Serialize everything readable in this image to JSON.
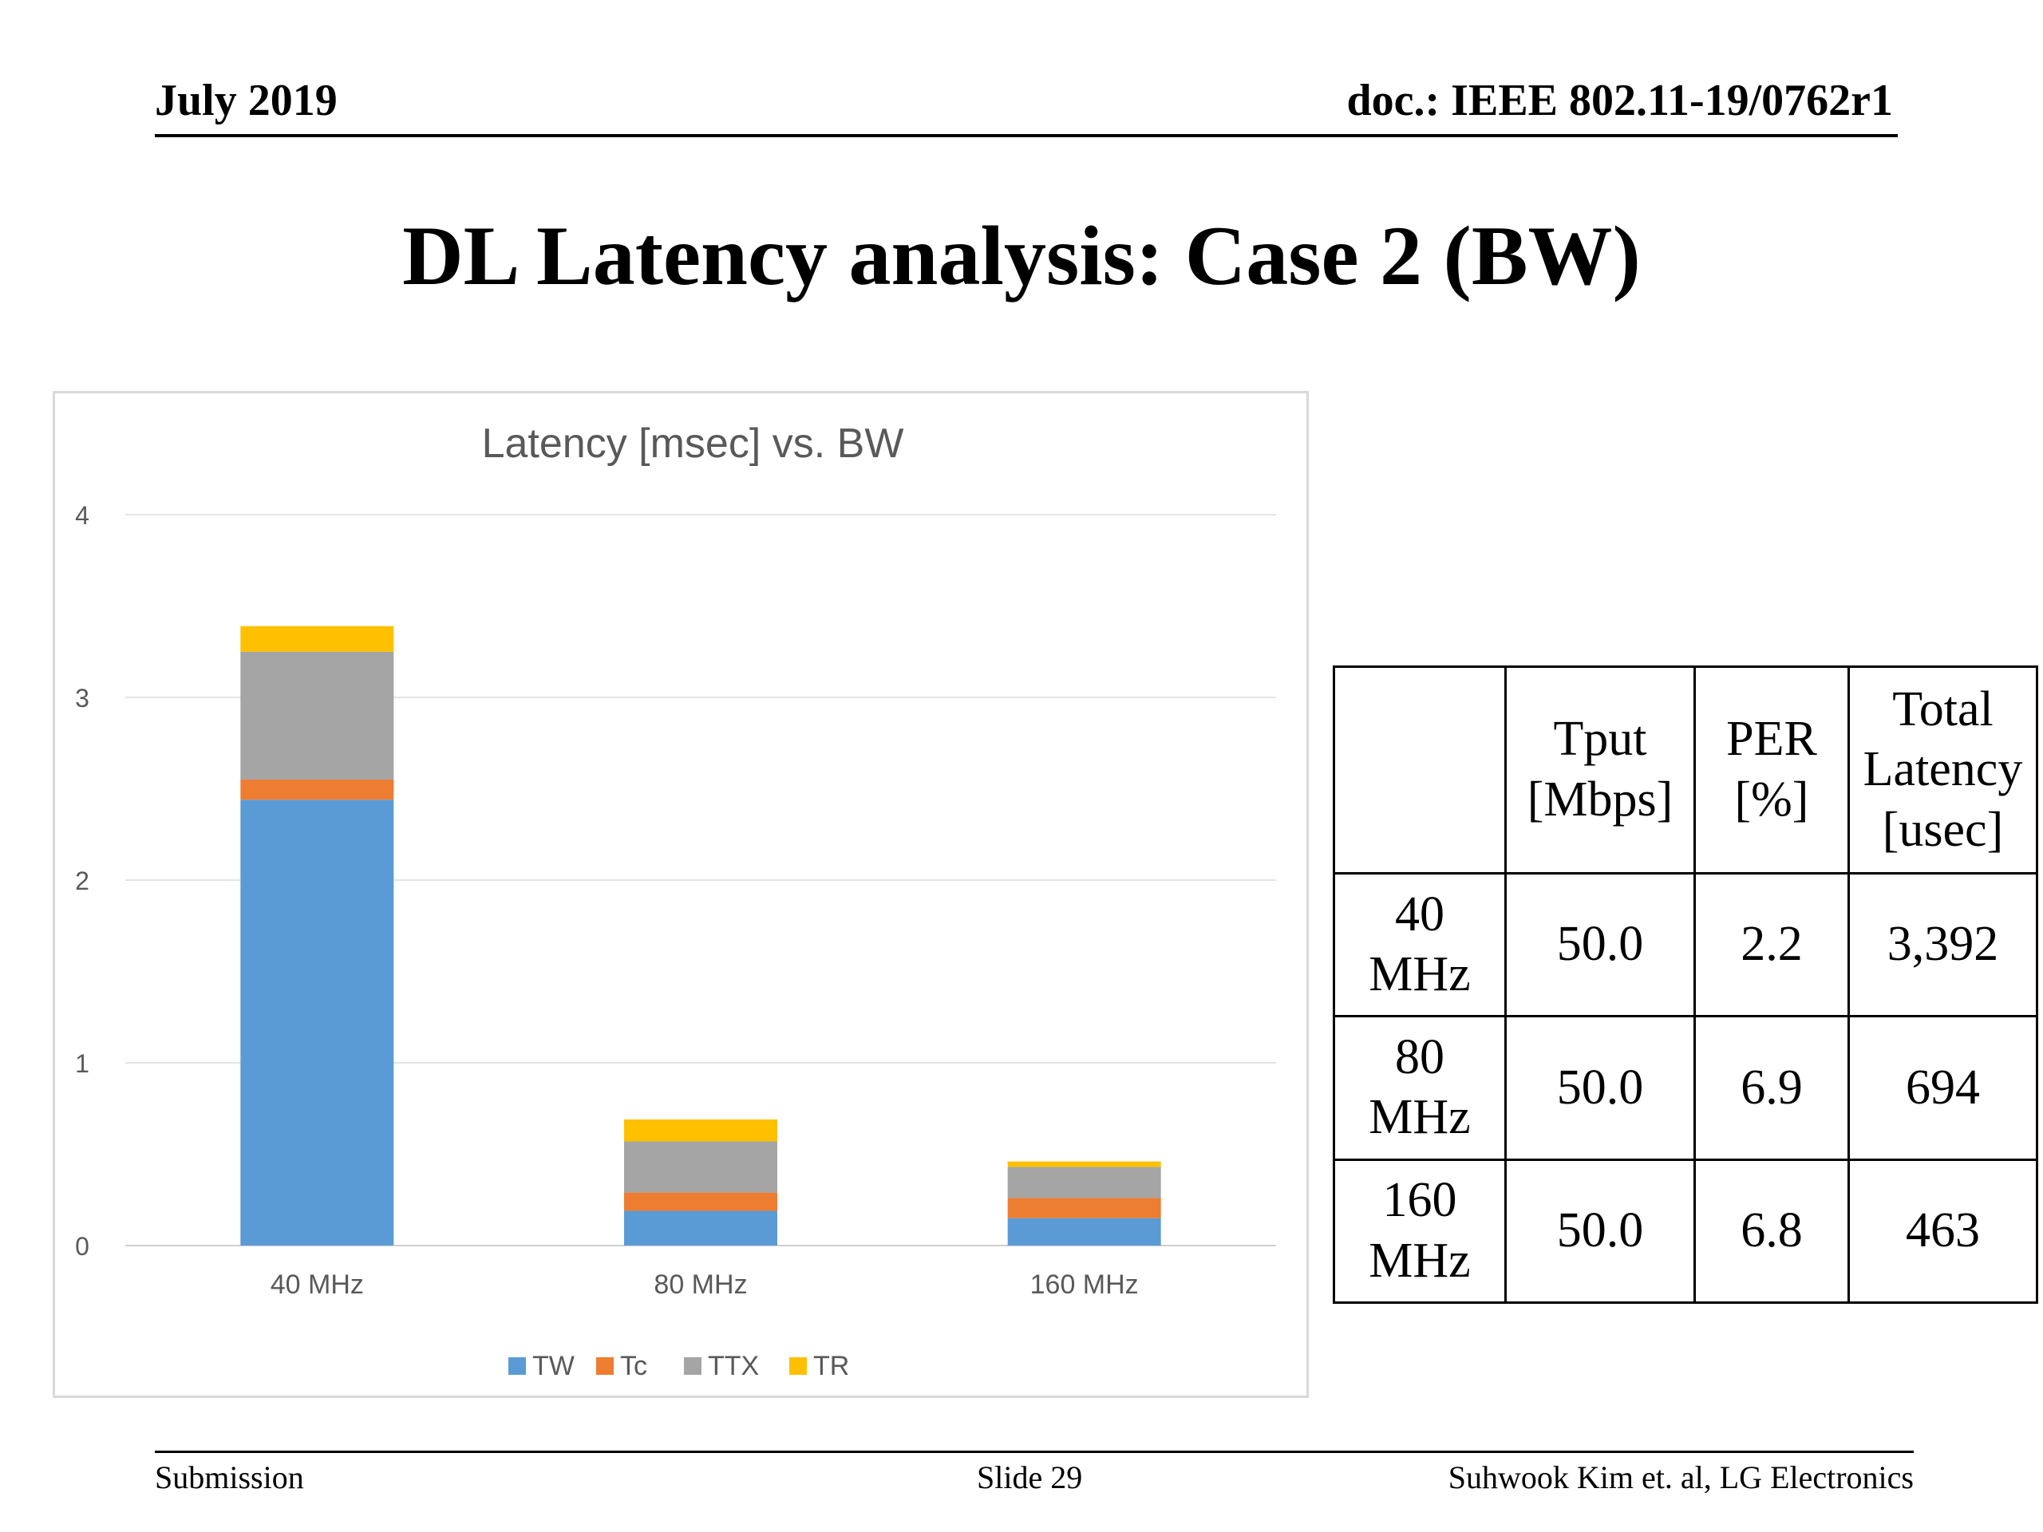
{
  "header": {
    "date": "July 2019",
    "doc": "doc.: IEEE 802.11-19/0762r1"
  },
  "slide_title": "DL Latency analysis: Case 2 (BW)",
  "chart_data": {
    "type": "bar",
    "stacked": true,
    "title": "Latency [msec] vs. BW",
    "xlabel": "",
    "ylabel": "",
    "categories": [
      "40 MHz",
      "80 MHz",
      "160 MHz"
    ],
    "ylim": [
      0,
      4
    ],
    "yticks": [
      0,
      1,
      2,
      3,
      4
    ],
    "grid": true,
    "legend_position": "bottom",
    "series": [
      {
        "name": "TW",
        "color": "#5b9bd5",
        "values": [
          2.44,
          0.19,
          0.15
        ]
      },
      {
        "name": "Tc",
        "color": "#ed7d31",
        "values": [
          0.11,
          0.1,
          0.11
        ]
      },
      {
        "name": "TTX",
        "color": "#a5a5a5",
        "values": [
          0.7,
          0.28,
          0.17
        ]
      },
      {
        "name": "TR",
        "color": "#ffc000",
        "values": [
          0.14,
          0.12,
          0.03
        ]
      }
    ]
  },
  "table": {
    "headers": [
      "",
      "Tput [Mbps]",
      "PER [%]",
      "Total Latency [usec]"
    ],
    "rows": [
      [
        "40 MHz",
        "50.0",
        "2.2",
        "3,392"
      ],
      [
        "80 MHz",
        "50.0",
        "6.9",
        "694"
      ],
      [
        "160 MHz",
        "50.0",
        "6.8",
        "463"
      ]
    ]
  },
  "footer": {
    "left": "Submission",
    "center": "Slide 29",
    "right": "Suhwook Kim et. al, LG Electronics"
  }
}
